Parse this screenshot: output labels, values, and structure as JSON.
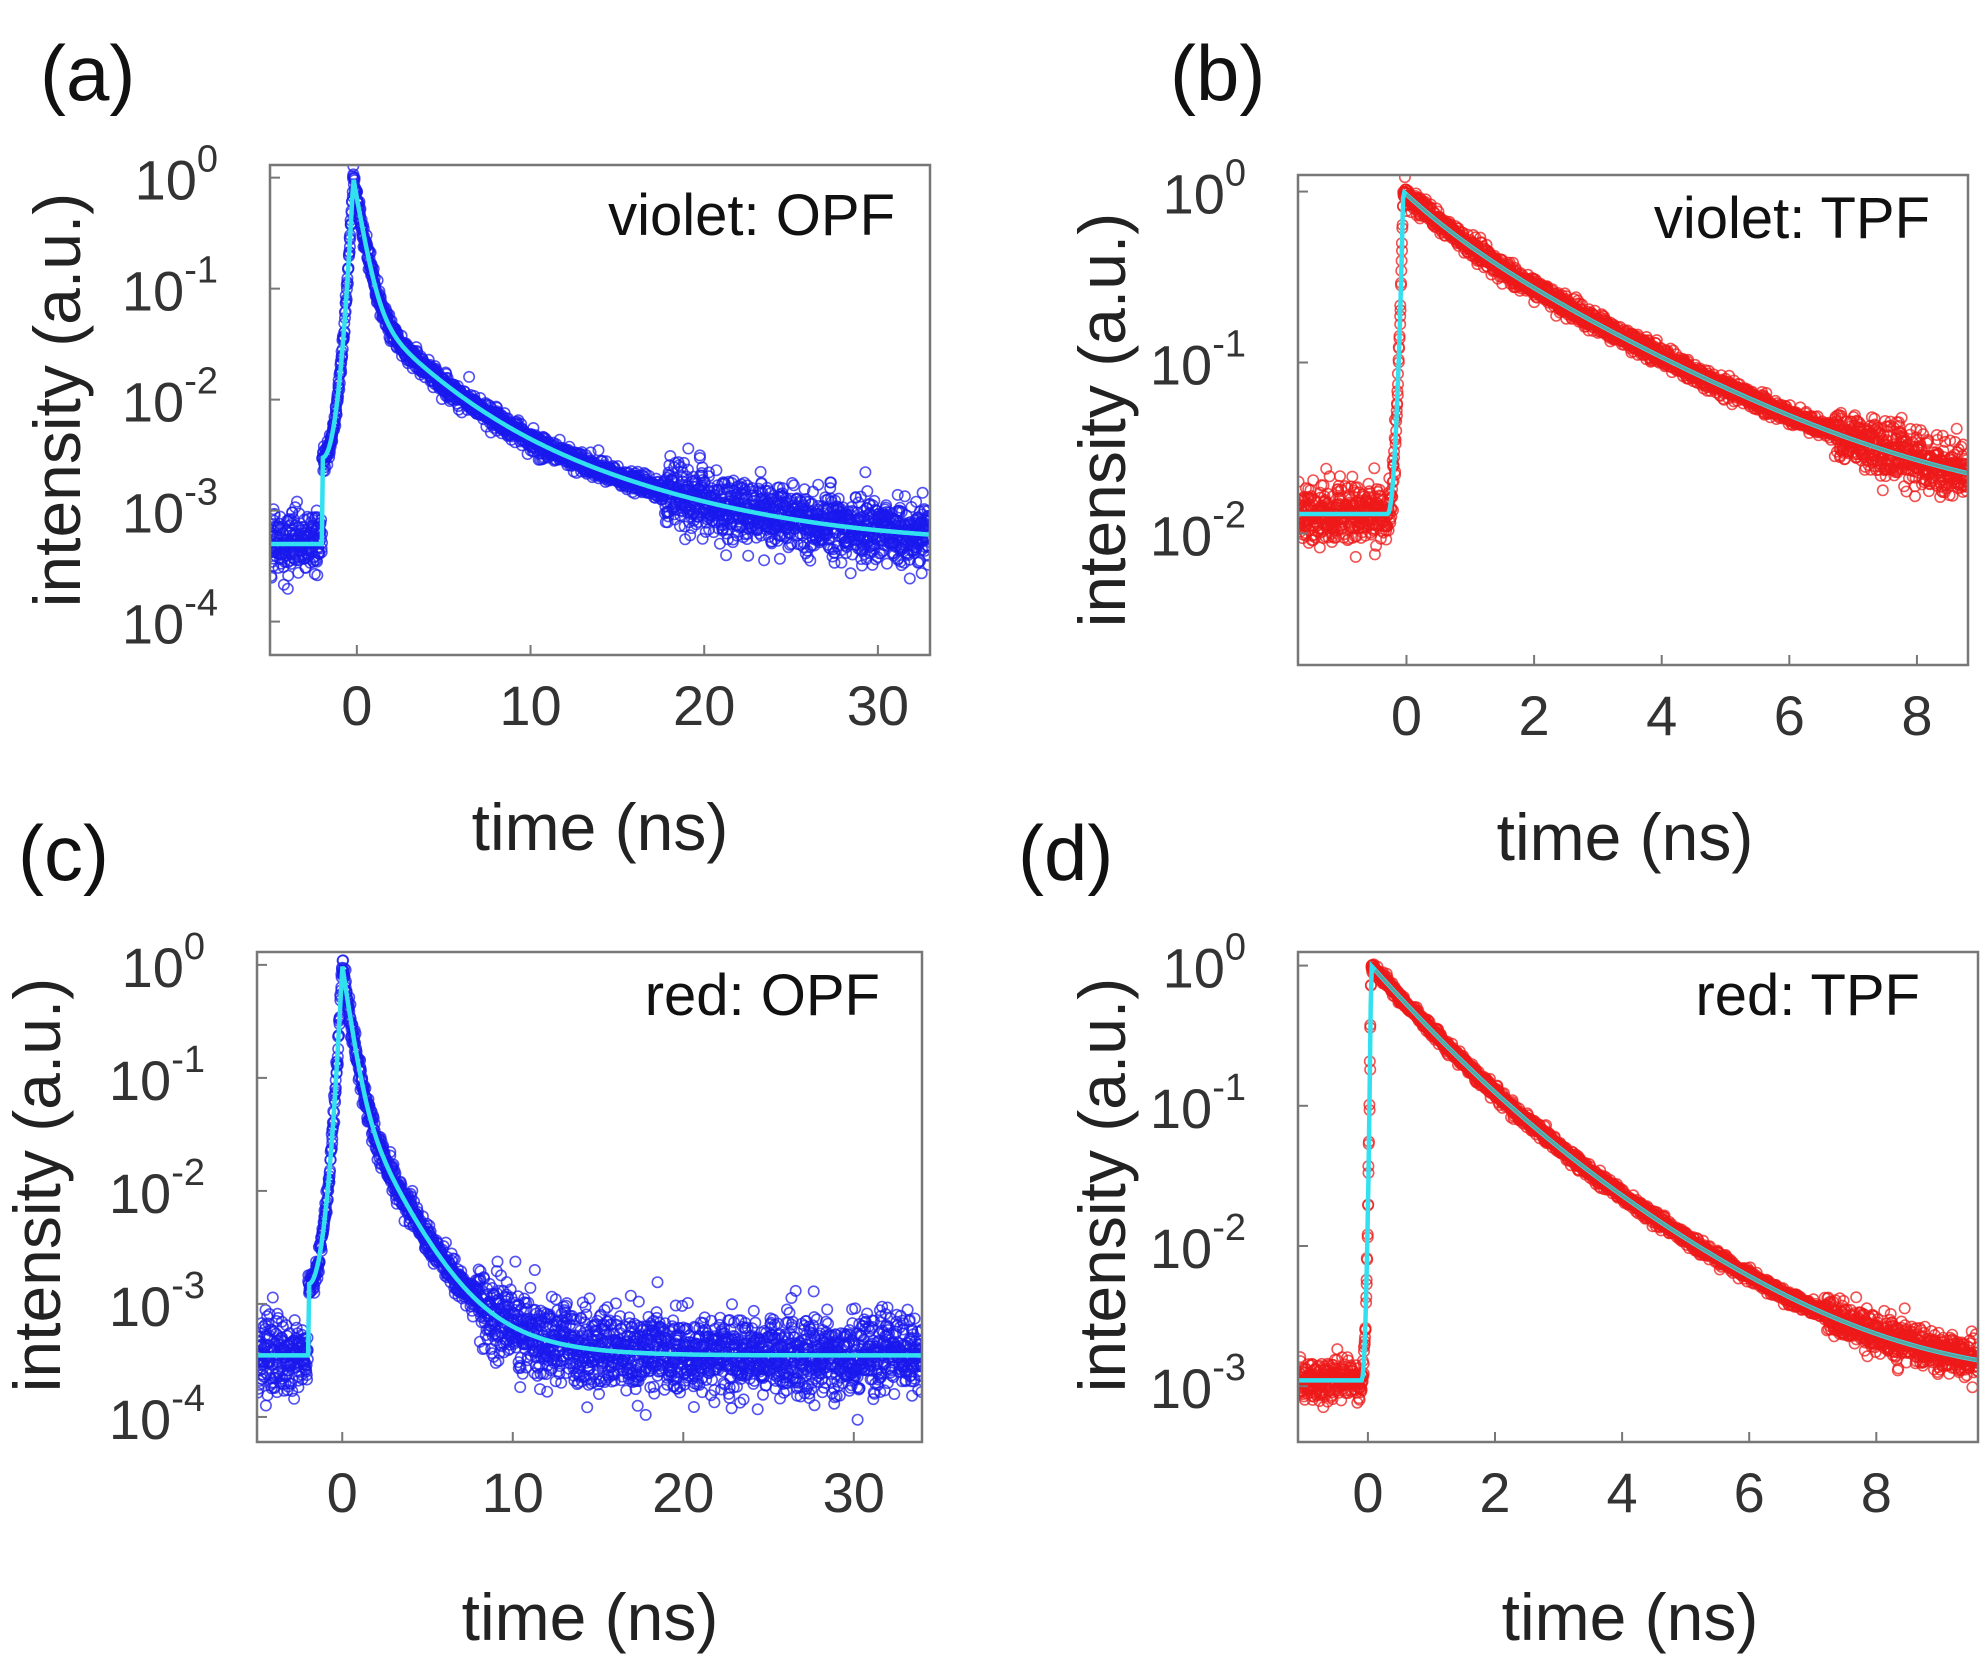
{
  "chart_data": [
    {
      "type": "scatter",
      "panel_label": "(a)",
      "annotation": "violet: OPF",
      "xlabel": "time (ns)",
      "ylabel": "intensity (a.u.)",
      "yscale": "log",
      "xlim": [
        -5,
        33
      ],
      "ylim": [
        5e-05,
        1.3
      ],
      "xticks": [
        0,
        10,
        20,
        30
      ],
      "yticks": [
        {
          "base": "10",
          "exp": "0",
          "value": 1
        },
        {
          "base": "10",
          "exp": "-1",
          "value": 0.1
        },
        {
          "base": "10",
          "exp": "-2",
          "value": 0.01
        },
        {
          "base": "10",
          "exp": "-3",
          "value": 0.001
        },
        {
          "base": "10",
          "exp": "-4",
          "value": 0.0001
        }
      ],
      "series": [
        {
          "kind": "data",
          "color": "#1a1aee",
          "marker": "open-circle"
        },
        {
          "kind": "fit",
          "color": "#33e0f0"
        }
      ],
      "model": {
        "baseline": 0.0005,
        "t0": -0.2,
        "rise_start": -2.0,
        "rise_floor": 0.003,
        "peak_width": 0.4,
        "decay": [
          {
            "amp": 0.6,
            "tau": 0.45
          },
          {
            "amp": 0.04,
            "tau": 2.5
          },
          {
            "amp": 0.008,
            "tau": 7.0
          }
        ],
        "noise_sigma": 0.3
      }
    },
    {
      "type": "scatter",
      "panel_label": "(b)",
      "annotation": "violet: TPF",
      "xlabel": "time (ns)",
      "ylabel": "intensity (a.u.)",
      "yscale": "log",
      "xlim": [
        -1.7,
        8.8
      ],
      "ylim": [
        0.0017,
        1.25
      ],
      "xticks": [
        0,
        2,
        4,
        6,
        8
      ],
      "yticks": [
        {
          "base": "10",
          "exp": "0",
          "value": 1
        },
        {
          "base": "10",
          "exp": "-1",
          "value": 0.1
        },
        {
          "base": "10",
          "exp": "-2",
          "value": 0.01
        }
      ],
      "series": [
        {
          "kind": "data",
          "color": "#ee1a1a",
          "marker": "open-circle"
        },
        {
          "kind": "fit",
          "color": "#33e0f0",
          "overlay_color": "#5aa5a0"
        }
      ],
      "model": {
        "baseline": 0.013,
        "t0": -0.05,
        "rise_start": -0.3,
        "rise_floor": 0.013,
        "peak_width": 0.15,
        "decay": [
          {
            "amp": 0.35,
            "tau": 0.7
          },
          {
            "amp": 0.65,
            "tau": 2.1
          }
        ],
        "noise_sigma": 0.18
      }
    },
    {
      "type": "scatter",
      "panel_label": "(c)",
      "annotation": "red: OPF",
      "xlabel": "time (ns)",
      "ylabel": "intensity (a.u.)",
      "yscale": "log",
      "xlim": [
        -5,
        34
      ],
      "ylim": [
        6e-05,
        1.3
      ],
      "xticks": [
        0,
        10,
        20,
        30
      ],
      "yticks": [
        {
          "base": "10",
          "exp": "0",
          "value": 1
        },
        {
          "base": "10",
          "exp": "-1",
          "value": 0.1
        },
        {
          "base": "10",
          "exp": "-2",
          "value": 0.01
        },
        {
          "base": "10",
          "exp": "-3",
          "value": 0.001
        },
        {
          "base": "10",
          "exp": "-4",
          "value": 0.0001
        }
      ],
      "series": [
        {
          "kind": "data",
          "color": "#1a1aee",
          "marker": "open-circle"
        },
        {
          "kind": "fit",
          "color": "#33e0f0"
        }
      ],
      "model": {
        "baseline": 0.00035,
        "t0": 0.0,
        "rise_start": -2.0,
        "rise_floor": 0.0015,
        "peak_width": 0.4,
        "decay": [
          {
            "amp": 0.9,
            "tau": 0.4
          },
          {
            "amp": 0.08,
            "tau": 1.4
          },
          {
            "amp": 0.006,
            "tau": 3.0
          }
        ],
        "noise_sigma": 0.4
      }
    },
    {
      "type": "scatter",
      "panel_label": "(d)",
      "annotation": "red: TPF",
      "xlabel": "time (ns)",
      "ylabel": "intensity (a.u.)",
      "yscale": "log",
      "xlim": [
        -1.1,
        9.6
      ],
      "ylim": [
        0.0004,
        1.25
      ],
      "xticks": [
        0,
        2,
        4,
        6,
        8
      ],
      "yticks": [
        {
          "base": "10",
          "exp": "0",
          "value": 1
        },
        {
          "base": "10",
          "exp": "-1",
          "value": 0.1
        },
        {
          "base": "10",
          "exp": "-2",
          "value": 0.01
        },
        {
          "base": "10",
          "exp": "-3",
          "value": 0.001
        }
      ],
      "series": [
        {
          "kind": "data",
          "color": "#ee1a1a",
          "marker": "open-circle"
        },
        {
          "kind": "fit",
          "color": "#33e0f0",
          "overlay_color": "#5aa5a0"
        }
      ],
      "model": {
        "baseline": 0.0011,
        "t0": 0.05,
        "rise_start": -0.1,
        "rise_floor": 0.0011,
        "peak_width": 0.06,
        "decay": [
          {
            "amp": 0.75,
            "tau": 0.75
          },
          {
            "amp": 0.25,
            "tau": 1.5
          }
        ],
        "noise_sigma": 0.15
      }
    }
  ]
}
